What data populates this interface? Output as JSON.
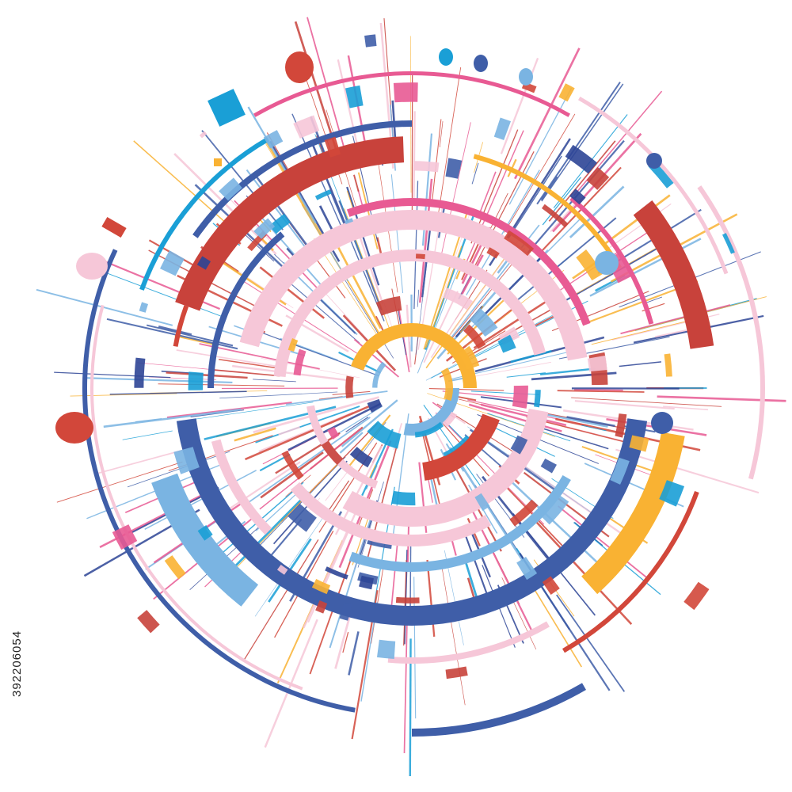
{
  "side_label": {
    "text": "392206054"
  }
}
